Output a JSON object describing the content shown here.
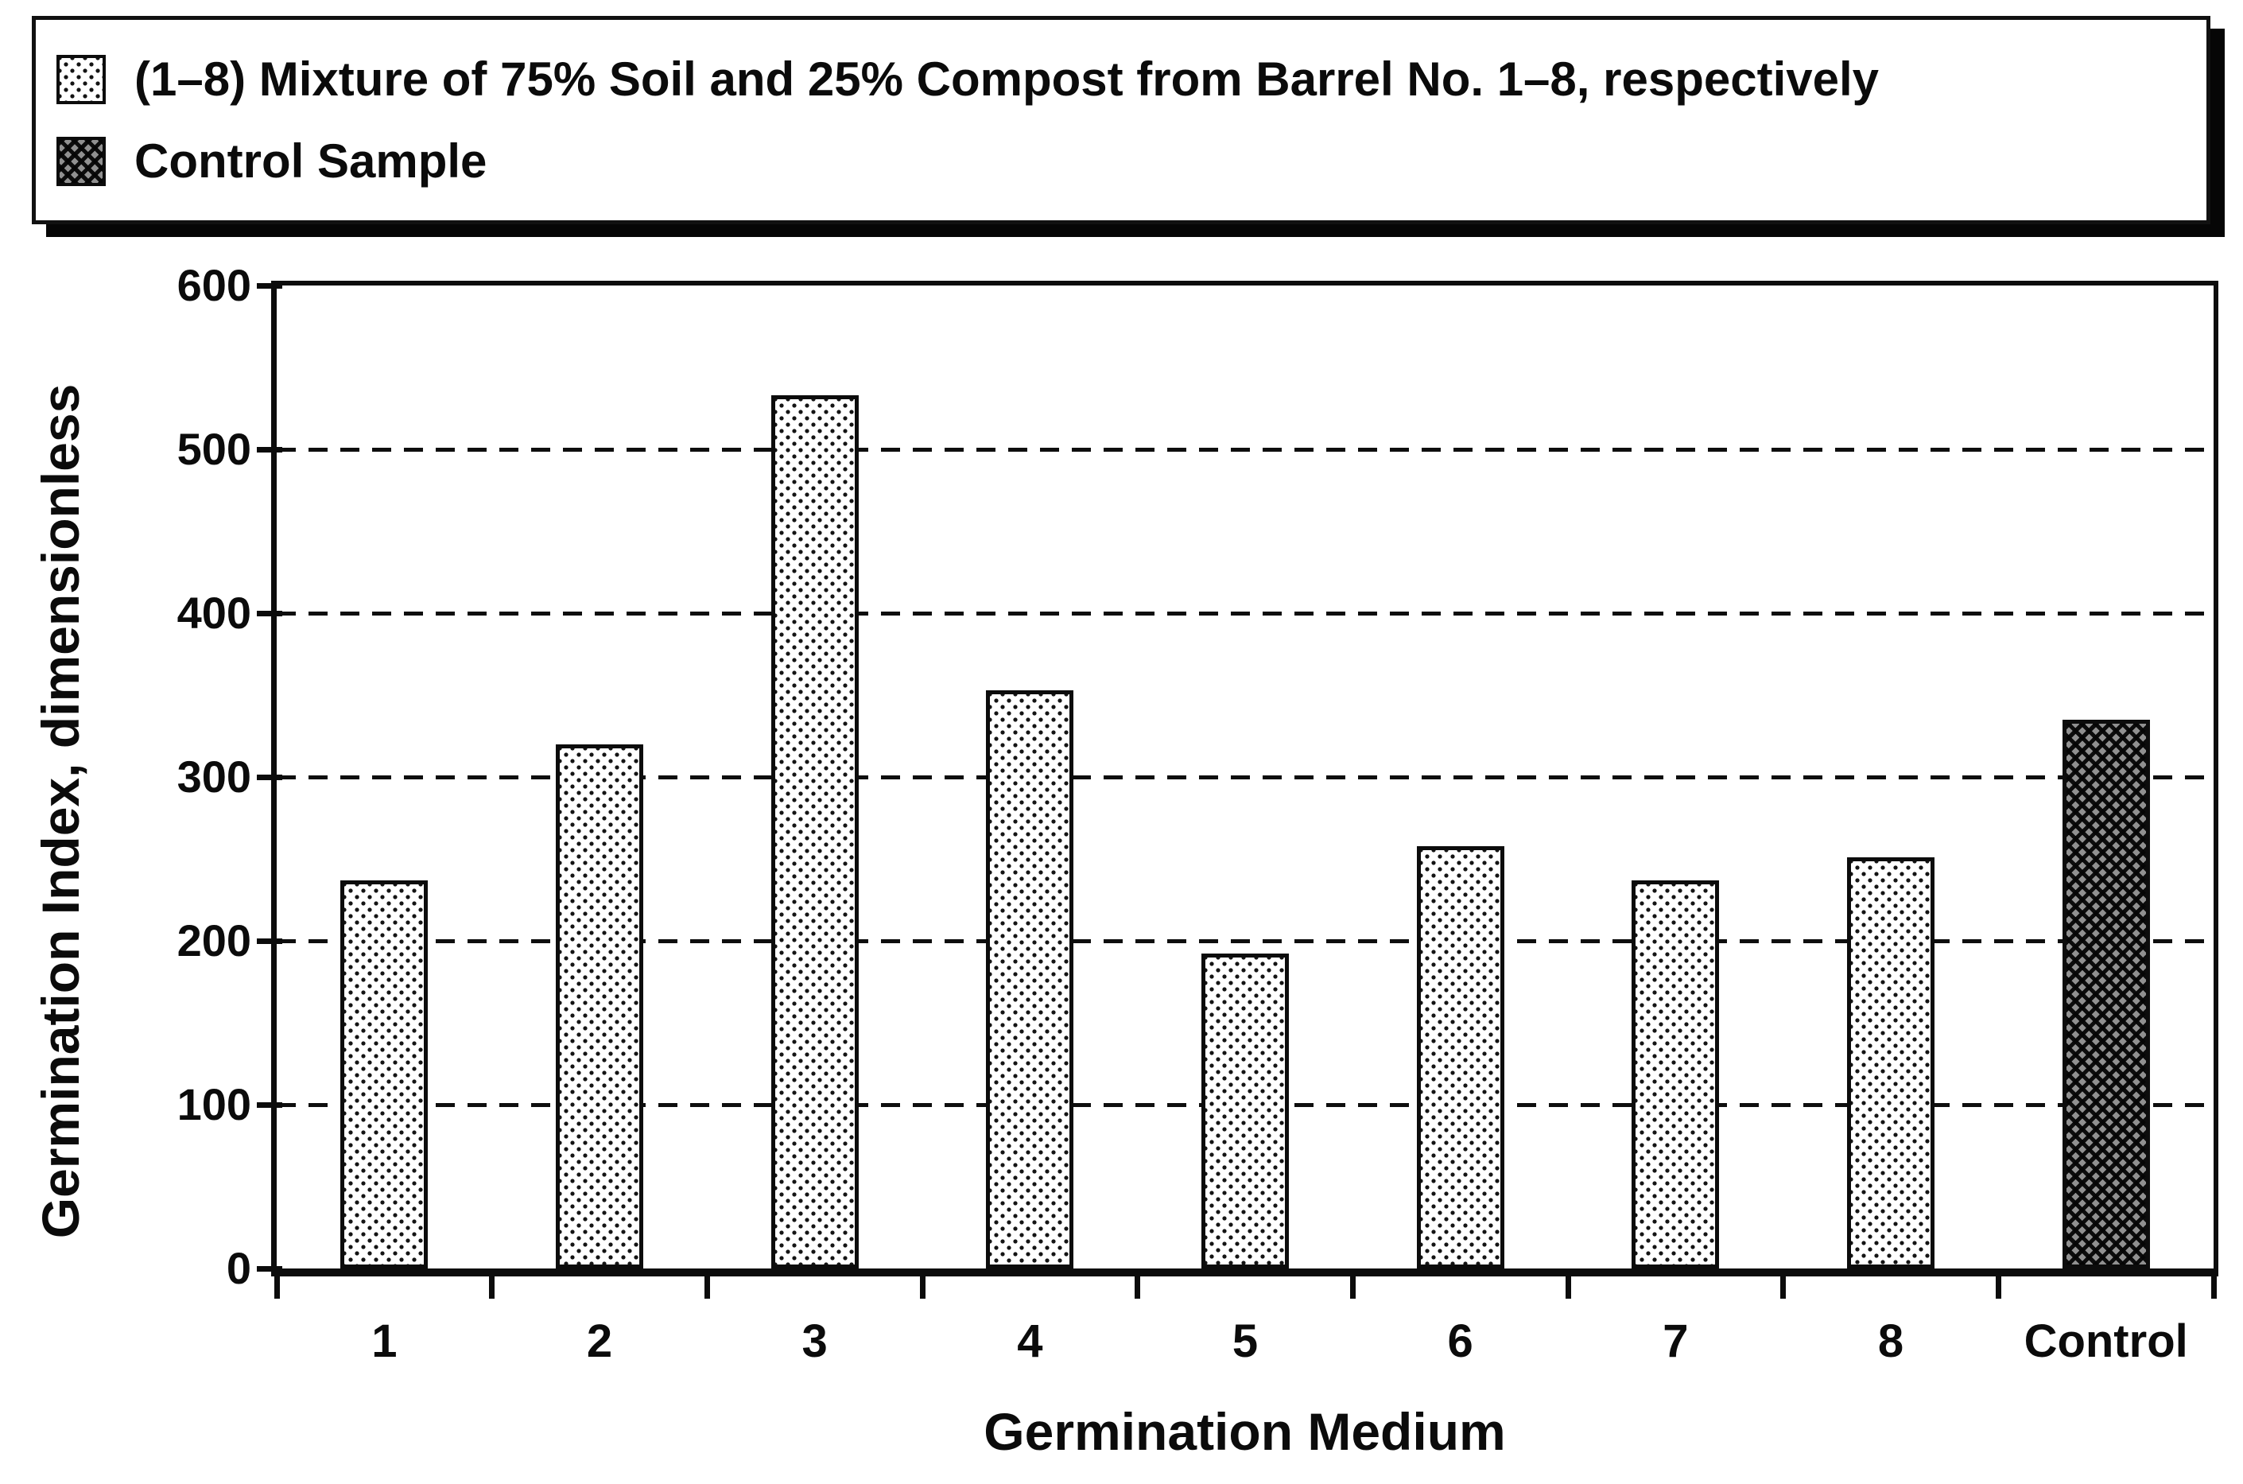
{
  "legend": {
    "items": [
      {
        "label": "(1–8) Mixture of 75% Soil and 25% Compost from Barrel No. 1–8, respectively",
        "pattern": "dotted"
      },
      {
        "label": "Control Sample",
        "pattern": "crosshatch"
      }
    ]
  },
  "chart_data": {
    "type": "bar",
    "title": "",
    "categories": [
      "1",
      "2",
      "3",
      "4",
      "5",
      "6",
      "7",
      "8",
      "Control"
    ],
    "values": [
      237,
      320,
      533,
      353,
      192,
      258,
      237,
      251,
      335
    ],
    "bar_styles": [
      "dotted",
      "dotted",
      "dotted",
      "dotted",
      "dotted",
      "dotted",
      "dotted",
      "dotted",
      "crosshatch"
    ],
    "xlabel": "Germination Medium",
    "ylabel": "Germination Index, dimensionless",
    "ylim": [
      0,
      600
    ],
    "yticks": [
      0,
      100,
      200,
      300,
      400,
      500,
      600
    ],
    "grid": "horizontal-dashed",
    "legend_position": "top"
  },
  "colors": {
    "ink": "#0b0b0b",
    "background": "#ffffff",
    "control_fill": "#909090"
  }
}
